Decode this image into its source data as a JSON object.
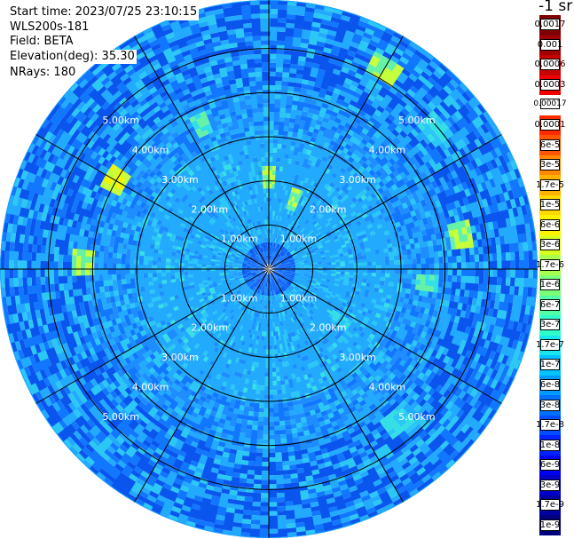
{
  "header": {
    "start_time": "Start time: 2023/07/25 23:10:15",
    "instrument": "WLS200s-181",
    "field": "Field: BETA",
    "elevation": "Elevation(deg): 35.30",
    "nrays": "NRays: 180"
  },
  "colorbar": {
    "unit": "-1 sr",
    "labels": [
      "0.0017",
      "0.001",
      "0.0006",
      "0.0003",
      "0.00017",
      "0.0001",
      "6e-5",
      "3e-5",
      "1.7e-5",
      "1e-5",
      "6e-6",
      "3e-6",
      "1.7e-6",
      "1e-6",
      "6e-7",
      "3e-7",
      "1.7e-7",
      "1e-7",
      "6e-8",
      "3e-8",
      "1.7e-8",
      "1e-8",
      "6e-9",
      "3e-9",
      "1.7e-9",
      "1e-9"
    ],
    "colors": [
      "#7f0000",
      "#a00000",
      "#c80000",
      "#ee0000",
      "#ffffff",
      "#ff2a00",
      "#ff5500",
      "#ff8800",
      "#ffb200",
      "#ffd800",
      "#fff200",
      "#d9ff1e",
      "#a8ff4e",
      "#7cff7a",
      "#52ffa5",
      "#2effcc",
      "#18e6ee",
      "#00c2ff",
      "#0099ff",
      "#0070ff",
      "#004cff",
      "#0022ff",
      "#0000f0",
      "#0000c8",
      "#0000a0",
      "#00007f"
    ]
  },
  "chart_data": {
    "type": "heatmap",
    "projection": "polar (PPI scan)",
    "field": "BETA",
    "elevation_deg": 35.3,
    "n_rays": 180,
    "range_rings_km": [
      1,
      2,
      3,
      4,
      5
    ],
    "range_labels": [
      "1.00km",
      "2.00km",
      "3.00km",
      "4.00km",
      "5.00km"
    ],
    "max_range_km": 6.1,
    "spoke_step_deg": 30,
    "hotspots": [
      {
        "az": 0,
        "range_km": 2.1,
        "level": "1.7e-6"
      },
      {
        "az": 20,
        "range_km": 1.7,
        "level": "1.7e-6"
      },
      {
        "az": 30,
        "range_km": 5.2,
        "level": "1.7e-6"
      },
      {
        "az": 50,
        "range_km": 4.9,
        "level": "3e-7"
      },
      {
        "az": 80,
        "range_km": 4.4,
        "level": "1.7e-6"
      },
      {
        "az": 95,
        "range_km": 3.6,
        "level": "1e-6"
      },
      {
        "az": 125,
        "range_km": 2.0,
        "level": "3e-7"
      },
      {
        "az": 140,
        "range_km": 4.5,
        "level": "3e-7"
      },
      {
        "az": 300,
        "range_km": 4.0,
        "level": "6e-6"
      },
      {
        "az": 335,
        "range_km": 3.6,
        "level": "1e-6"
      },
      {
        "az": 272,
        "range_km": 4.2,
        "level": "1.7e-6"
      }
    ]
  }
}
